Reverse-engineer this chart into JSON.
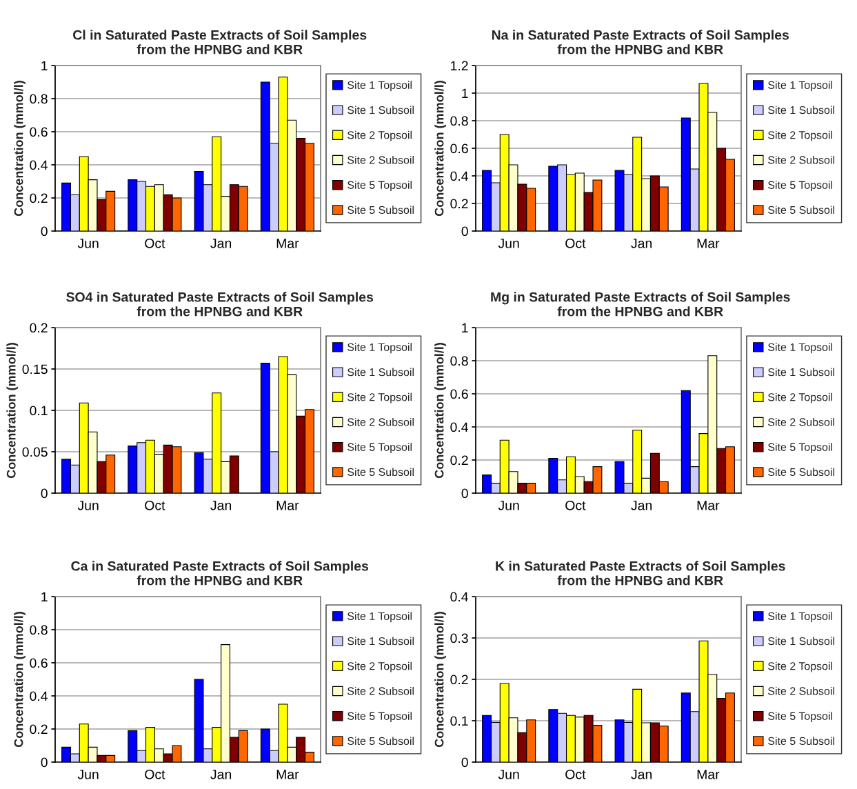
{
  "chart_data": [
    {
      "type": "bar",
      "title": "Cl in Saturated Paste Extracts of Soil Samples\nfrom the HPNBG and KBR",
      "ylabel": "Concentration (mmol/l)",
      "categories": [
        "Jun",
        "Oct",
        "Jan",
        "Mar"
      ],
      "ylim": [
        0,
        1
      ],
      "yticks": [
        0,
        0.2,
        0.4,
        0.6,
        0.8,
        1
      ],
      "grid": "y",
      "legend": "right",
      "series": [
        {
          "name": "Site 1 Topsoil",
          "color": "#0000ff",
          "values": [
            0.29,
            0.31,
            0.36,
            0.9
          ]
        },
        {
          "name": "Site 1 Subsoil",
          "color": "#ccccff",
          "values": [
            0.22,
            0.3,
            0.28,
            0.53
          ]
        },
        {
          "name": "Site 2 Topsoil",
          "color": "#ffff00",
          "values": [
            0.45,
            0.27,
            0.57,
            0.93
          ]
        },
        {
          "name": "Site 2 Subsoil",
          "color": "#ffffcc",
          "values": [
            0.31,
            0.28,
            0.21,
            0.67
          ]
        },
        {
          "name": "Site 5 Topsoil",
          "color": "#800000",
          "values": [
            0.19,
            0.22,
            0.28,
            0.56
          ]
        },
        {
          "name": "Site 5 Subsoil",
          "color": "#ff6600",
          "values": [
            0.24,
            0.2,
            0.27,
            0.53
          ]
        }
      ]
    },
    {
      "type": "bar",
      "title": "Na in Saturated Paste Extracts of Soil Samples\nfrom the HPNBG and KBR",
      "ylabel": "Concentration (mmol/l)",
      "categories": [
        "Jun",
        "Oct",
        "Jan",
        "Mar"
      ],
      "ylim": [
        0,
        1.2
      ],
      "yticks": [
        0,
        0.2,
        0.4,
        0.6,
        0.8,
        1,
        1.2
      ],
      "grid": "y",
      "legend": "right",
      "series": [
        {
          "name": "Site 1 Topsoil",
          "color": "#0000ff",
          "values": [
            0.44,
            0.47,
            0.44,
            0.82
          ]
        },
        {
          "name": "Site 1 Subsoil",
          "color": "#ccccff",
          "values": [
            0.35,
            0.48,
            0.41,
            0.45
          ]
        },
        {
          "name": "Site 2 Topsoil",
          "color": "#ffff00",
          "values": [
            0.7,
            0.41,
            0.68,
            1.07
          ]
        },
        {
          "name": "Site 2 Subsoil",
          "color": "#ffffcc",
          "values": [
            0.48,
            0.42,
            0.38,
            0.86
          ]
        },
        {
          "name": "Site 5 Topsoil",
          "color": "#800000",
          "values": [
            0.34,
            0.28,
            0.4,
            0.6
          ]
        },
        {
          "name": "Site 5 Subsoil",
          "color": "#ff6600",
          "values": [
            0.31,
            0.37,
            0.32,
            0.52
          ]
        }
      ]
    },
    {
      "type": "bar",
      "title": "SO4 in Saturated Paste Extracts of Soil Samples\nfrom the HPNBG and KBR",
      "ylabel": "Concentration (mmol/l)",
      "categories": [
        "Jun",
        "Oct",
        "Jan",
        "Mar"
      ],
      "ylim": [
        0,
        0.2
      ],
      "yticks": [
        0,
        0.05,
        0.1,
        0.15,
        0.2
      ],
      "grid": "y",
      "legend": "right",
      "series": [
        {
          "name": "Site 1 Topsoil",
          "color": "#0000ff",
          "values": [
            0.041,
            0.057,
            0.049,
            0.157
          ]
        },
        {
          "name": "Site 1 Subsoil",
          "color": "#ccccff",
          "values": [
            0.034,
            0.061,
            0.041,
            0.05
          ]
        },
        {
          "name": "Site 2 Topsoil",
          "color": "#ffff00",
          "values": [
            0.109,
            0.064,
            0.121,
            0.165
          ]
        },
        {
          "name": "Site 2 Subsoil",
          "color": "#ffffcc",
          "values": [
            0.074,
            0.047,
            0.038,
            0.143
          ]
        },
        {
          "name": "Site 5 Topsoil",
          "color": "#800000",
          "values": [
            0.038,
            0.058,
            0.045,
            0.093
          ]
        },
        {
          "name": "Site 5 Subsoil",
          "color": "#ff6600",
          "values": [
            0.046,
            0.056,
            null,
            0.101
          ]
        }
      ]
    },
    {
      "type": "bar",
      "title": "Mg in Saturated Paste Extracts of Soil Samples\nfrom the HPNBG and KBR",
      "ylabel": "Concentration (mmol/l)",
      "categories": [
        "Jun",
        "Oct",
        "Jan",
        "Mar"
      ],
      "ylim": [
        0,
        1
      ],
      "yticks": [
        0,
        0.2,
        0.4,
        0.6,
        0.8,
        1
      ],
      "grid": "y",
      "legend": "right",
      "series": [
        {
          "name": "Site 1 Topsoil",
          "color": "#0000ff",
          "values": [
            0.11,
            0.21,
            0.19,
            0.62
          ]
        },
        {
          "name": "Site 1 Subsoil",
          "color": "#ccccff",
          "values": [
            0.06,
            0.08,
            0.06,
            0.16
          ]
        },
        {
          "name": "Site 2 Topsoil",
          "color": "#ffff00",
          "values": [
            0.32,
            0.22,
            0.38,
            0.36
          ]
        },
        {
          "name": "Site 2 Subsoil",
          "color": "#ffffcc",
          "values": [
            0.13,
            0.1,
            0.09,
            0.83
          ]
        },
        {
          "name": "Site 5 Topsoil",
          "color": "#800000",
          "values": [
            0.06,
            0.07,
            0.24,
            0.27
          ]
        },
        {
          "name": "Site 5 Subsoil",
          "color": "#ff6600",
          "values": [
            0.06,
            0.16,
            0.07,
            0.28
          ]
        }
      ]
    },
    {
      "type": "bar",
      "title": "Ca in Saturated Paste Extracts of Soil Samples\nfrom the HPNBG and KBR",
      "ylabel": "Concentration (mmol/l)",
      "categories": [
        "Jun",
        "Oct",
        "Jan",
        "Mar"
      ],
      "ylim": [
        0,
        1
      ],
      "yticks": [
        0,
        0.2,
        0.4,
        0.6,
        0.8,
        1
      ],
      "grid": "y",
      "legend": "right",
      "series": [
        {
          "name": "Site 1 Topsoil",
          "color": "#0000ff",
          "values": [
            0.09,
            0.19,
            0.5,
            0.2
          ]
        },
        {
          "name": "Site 1 Subsoil",
          "color": "#ccccff",
          "values": [
            0.05,
            0.07,
            0.08,
            0.07
          ]
        },
        {
          "name": "Site 2 Topsoil",
          "color": "#ffff00",
          "values": [
            0.23,
            0.21,
            0.21,
            0.35
          ]
        },
        {
          "name": "Site 2 Subsoil",
          "color": "#ffffcc",
          "values": [
            0.09,
            0.08,
            0.71,
            0.09
          ]
        },
        {
          "name": "Site 5 Topsoil",
          "color": "#800000",
          "values": [
            0.04,
            0.05,
            0.15,
            0.15
          ]
        },
        {
          "name": "Site 5 Subsoil",
          "color": "#ff6600",
          "values": [
            0.04,
            0.1,
            0.19,
            0.06
          ]
        }
      ]
    },
    {
      "type": "bar",
      "title": "K in Saturated Paste Extracts of Soil Samples\nfrom the HPNBG and KBR",
      "ylabel": "Concentration (mmol/l)",
      "categories": [
        "Jun",
        "Oct",
        "Jan",
        "Mar"
      ],
      "ylim": [
        0,
        0.4
      ],
      "yticks": [
        0,
        0.1,
        0.2,
        0.3,
        0.4
      ],
      "grid": "y",
      "legend": "right",
      "series": [
        {
          "name": "Site 1 Topsoil",
          "color": "#0000ff",
          "values": [
            0.113,
            0.127,
            0.102,
            0.167
          ]
        },
        {
          "name": "Site 1 Subsoil",
          "color": "#ccccff",
          "values": [
            0.096,
            0.118,
            0.096,
            0.122
          ]
        },
        {
          "name": "Site 2 Topsoil",
          "color": "#ffff00",
          "values": [
            0.19,
            0.113,
            0.176,
            0.293
          ]
        },
        {
          "name": "Site 2 Subsoil",
          "color": "#ffffcc",
          "values": [
            0.107,
            0.109,
            0.095,
            0.212
          ]
        },
        {
          "name": "Site 5 Topsoil",
          "color": "#800000",
          "values": [
            0.071,
            0.113,
            0.095,
            0.154
          ]
        },
        {
          "name": "Site 5 Subsoil",
          "color": "#ff6600",
          "values": [
            0.102,
            0.089,
            0.087,
            0.167
          ]
        }
      ]
    }
  ]
}
